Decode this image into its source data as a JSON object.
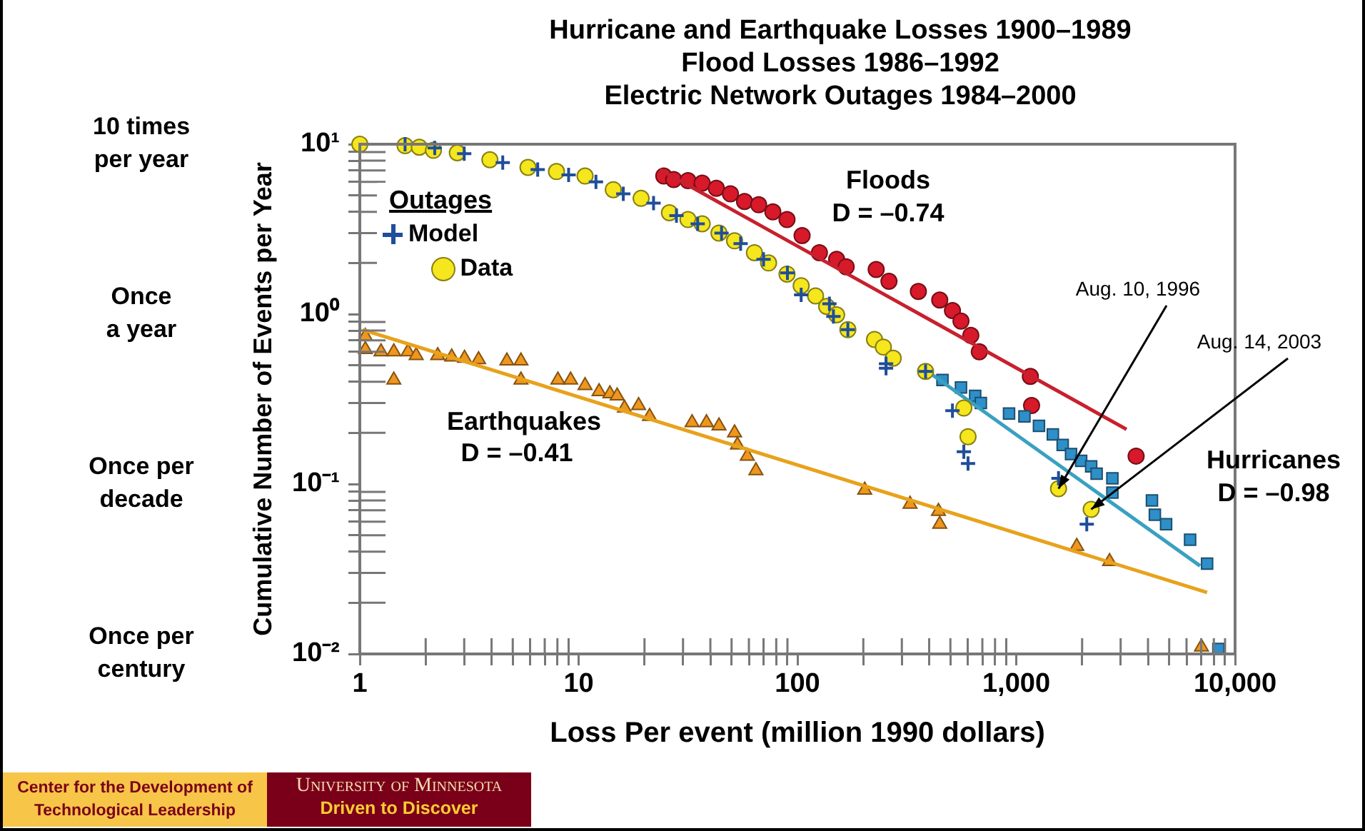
{
  "chart_data": {
    "type": "scatter",
    "title": "Hurricane and Earthquake Losses 1900–1989\nFlood Losses 1986–1992\nElectric Network Outages 1984–2000",
    "xlabel": "Loss Per event (million 1990 dollars)",
    "ylabel": "Cumulative Number of Events per Year",
    "legend_title": "Outages",
    "legend": "top left",
    "log": "xy",
    "xlim": [
      1,
      10000
    ],
    "ylim": [
      0.01,
      10
    ],
    "xticks": [
      1,
      {
        "value": 2,
        "label": null
      },
      {
        "value": 3,
        "label": null
      },
      {
        "value": 4,
        "label": null
      },
      {
        "value": 5,
        "label": null
      },
      {
        "value": 6,
        "label": null
      },
      {
        "value": 7,
        "label": null
      },
      {
        "value": 8,
        "label": null
      },
      {
        "value": 9,
        "label": null
      },
      10,
      {
        "value": 20,
        "label": null
      },
      {
        "value": 30,
        "label": null
      },
      {
        "value": 40,
        "label": null
      },
      {
        "value": 50,
        "label": null
      },
      {
        "value": 60,
        "label": null
      },
      {
        "value": 70,
        "label": null
      },
      {
        "value": 80,
        "label": null
      },
      {
        "value": 90,
        "label": null
      },
      100,
      {
        "value": 200,
        "label": null
      },
      {
        "value": 300,
        "label": null
      },
      {
        "value": 400,
        "label": null
      },
      {
        "value": 500,
        "label": null
      },
      {
        "value": 600,
        "label": null
      },
      {
        "value": 700,
        "label": null
      },
      {
        "value": 800,
        "label": null
      },
      {
        "value": 900,
        "label": null
      },
      {
        "value": 1000,
        "label": "1,000"
      },
      {
        "value": 2000,
        "label": null
      },
      {
        "value": 3000,
        "label": null
      },
      {
        "value": 4000,
        "label": null
      },
      {
        "value": 5000,
        "label": null
      },
      {
        "value": 6000,
        "label": null
      },
      {
        "value": 7000,
        "label": null
      },
      {
        "value": 8000,
        "label": null
      },
      {
        "value": 9000,
        "label": null
      },
      {
        "value": 10000,
        "label": "10,000"
      }
    ],
    "yticks": [
      {
        "value": 0.01,
        "label": "10⁻²"
      },
      {
        "value": 0.02,
        "label": null
      },
      {
        "value": 0.03,
        "label": null
      },
      {
        "value": 0.04,
        "label": null
      },
      {
        "value": 0.05,
        "label": null
      },
      {
        "value": 0.06,
        "label": null
      },
      {
        "value": 0.07,
        "label": null
      },
      {
        "value": 0.08,
        "label": null
      },
      {
        "value": 0.09,
        "label": null
      },
      {
        "value": 0.1,
        "label": "10⁻¹"
      },
      {
        "value": 0.2,
        "label": null
      },
      {
        "value": 0.3,
        "label": null
      },
      {
        "value": 0.4,
        "label": null
      },
      {
        "value": 0.5,
        "label": null
      },
      {
        "value": 0.6,
        "label": null
      },
      {
        "value": 0.7,
        "label": null
      },
      {
        "value": 0.8,
        "label": null
      },
      {
        "value": 0.9,
        "label": null
      },
      {
        "value": 1,
        "label": "10⁰"
      },
      {
        "value": 2,
        "label": null
      },
      {
        "value": 3,
        "label": null
      },
      {
        "value": 4,
        "label": null
      },
      {
        "value": 5,
        "label": null
      },
      {
        "value": 6,
        "label": null
      },
      {
        "value": 7,
        "label": null
      },
      {
        "value": 8,
        "label": null
      },
      {
        "value": 9,
        "label": null
      },
      {
        "value": 10,
        "label": "10¹"
      }
    ],
    "series": [
      {
        "color": "#f0961e",
        "marker": "triangle",
        "x": [
          1.06,
          1.06,
          1.25,
          1.43,
          1.66,
          1.81,
          1.43,
          2.27,
          2.63,
          3.01,
          3.49,
          4.7,
          5.45,
          5.45,
          8.04,
          9.19,
          10.7,
          12.4,
          13.9,
          15,
          16.2,
          18.8,
          21.1,
          33,
          38.4,
          43.8,
          51.6,
          53.2,
          59,
          64.6,
          203,
          327,
          441,
          447,
          1890,
          2670,
          7020
        ],
        "values": [
          0.74,
          0.62,
          0.6,
          0.6,
          0.6,
          0.57,
          0.41,
          0.57,
          0.56,
          0.55,
          0.54,
          0.53,
          0.53,
          0.41,
          0.41,
          0.41,
          0.38,
          0.35,
          0.34,
          0.33,
          0.28,
          0.29,
          0.25,
          0.23,
          0.23,
          0.22,
          0.2,
          0.17,
          0.146,
          0.12,
          0.092,
          0.076,
          0.069,
          0.058,
          0.043,
          0.035,
          0.011
        ]
      },
      {
        "type": "line",
        "color": "#e8a21c",
        "marker": "none",
        "x": [
          1.03,
          7450
        ],
        "values": [
          0.81,
          0.023
        ]
      },
      {
        "color": "#d7192a",
        "marker": "circle",
        "x": [
          24.5,
          27.2,
          31.6,
          36.7,
          42.6,
          49.4,
          57.3,
          66.5,
          77.2,
          89.6,
          105,
          126,
          151,
          167,
          229,
          262,
          357,
          447,
          511,
          559,
          620,
          678,
          1160,
          1175,
          3530
        ],
        "values": [
          6.5,
          6.2,
          6.1,
          5.9,
          5.5,
          5.1,
          4.6,
          4.4,
          4.0,
          3.6,
          2.9,
          2.3,
          2.1,
          1.9,
          1.83,
          1.56,
          1.36,
          1.21,
          1.05,
          0.91,
          0.75,
          0.6,
          0.43,
          0.29,
          0.146
        ]
      },
      {
        "type": "line",
        "color": "#c8202e",
        "marker": "none",
        "x": [
          23.5,
          3190
        ],
        "values": [
          7.1,
          0.21
        ]
      },
      {
        "color": "#2f8fc8",
        "marker": "square",
        "x": [
          460,
          559,
          649,
          689,
          927,
          1090,
          1270,
          1470,
          1630,
          1780,
          1980,
          2200,
          2330,
          2750,
          2750,
          4170,
          4300,
          4840,
          6230,
          7450,
          8390
        ],
        "values": [
          0.41,
          0.37,
          0.33,
          0.3,
          0.26,
          0.25,
          0.22,
          0.196,
          0.17,
          0.15,
          0.137,
          0.127,
          0.115,
          0.108,
          0.089,
          0.08,
          0.066,
          0.058,
          0.047,
          0.034,
          0.0107
        ]
      },
      {
        "type": "line",
        "color": "#3aa0c0",
        "marker": "none",
        "x": [
          403,
          6920
        ],
        "values": [
          0.45,
          0.033
        ]
      },
      {
        "name": "Data",
        "color": "#f5e61e",
        "marker": "circle",
        "x": [
          1,
          1.61,
          1.87,
          2.17,
          2.79,
          3.93,
          5.87,
          7.92,
          10.7,
          14.4,
          19.3,
          26,
          31.6,
          36.7,
          43.8,
          51.6,
          63.6,
          73.8,
          89.6,
          104,
          121,
          136,
          151,
          170,
          225,
          247,
          274,
          385,
          576,
          602,
          1560,
          2200
        ],
        "values": [
          10,
          9.8,
          9.6,
          9.2,
          8.9,
          8.1,
          7.3,
          6.9,
          6.5,
          5.4,
          4.8,
          3.95,
          3.6,
          3.4,
          3,
          2.7,
          2.3,
          2,
          1.72,
          1.47,
          1.28,
          1.11,
          0.99,
          0.81,
          0.71,
          0.64,
          0.55,
          0.46,
          0.28,
          0.19,
          0.094,
          0.071
        ]
      },
      {
        "name": "Model",
        "color": "#1f4e9a",
        "marker": "cross",
        "x": [
          1.61,
          2.2,
          3,
          4.5,
          6.5,
          9,
          12,
          16,
          22,
          28,
          35,
          45,
          55,
          70,
          90,
          104,
          140,
          146,
          170,
          254,
          254,
          385,
          511,
          576,
          602,
          1560,
          2100
        ],
        "values": [
          10,
          9.5,
          8.8,
          7.8,
          7.1,
          6.6,
          6,
          5.1,
          4.5,
          3.8,
          3.4,
          3,
          2.6,
          2.1,
          1.75,
          1.3,
          1.15,
          0.97,
          0.81,
          0.51,
          0.48,
          0.46,
          0.27,
          0.155,
          0.132,
          0.108,
          0.058
        ]
      }
    ],
    "annotations": [
      "Floods",
      "D = –0.74",
      "Earthquakes",
      "D = –0.41",
      "Hurricanes",
      "D = –0.98",
      "10 times per year",
      "Once a year",
      "Once per decade",
      "Once per century",
      {
        "text": "Aug. 10, 1996",
        "x": 1560,
        "y": 0.094
      },
      {
        "text": "Aug. 14, 2003",
        "x": 2200,
        "y": 0.071
      },
      "Center for the Development of Technological Leadership",
      "University of Minnesota",
      "Driven to Discover"
    ]
  }
}
